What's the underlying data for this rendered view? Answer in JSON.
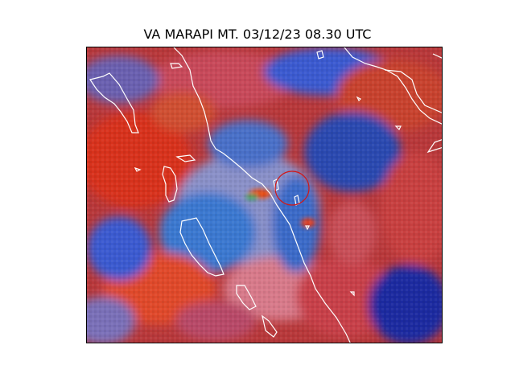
{
  "figure": {
    "title": "VA MARAPI MT. 03/12/23 08.30 UTC"
  },
  "map": {
    "colors": {
      "coastline": "#ffffff",
      "ring": "#d01818",
      "ash_red": "#d8321e",
      "cloud_blue": "#2a5ad0",
      "pink": "#d87a8a",
      "deep_blue": "#1a2aa0"
    },
    "features": {
      "volcano_marker": "circle-marker"
    }
  }
}
